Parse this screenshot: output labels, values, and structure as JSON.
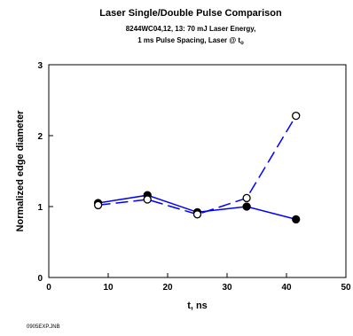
{
  "chart_data": {
    "type": "line",
    "title": "Laser Single/Double Pulse Comparison",
    "subtitle_line1": "8244WC04,12, 13: 70 mJ Laser Energy,",
    "subtitle_line2": "1 ms Pulse Spacing, Laser @ t",
    "subtitle_subscript": "o",
    "xlabel": "t, ns",
    "ylabel": "Normalized edge diameter",
    "xlim": [
      0,
      50
    ],
    "ylim": [
      0,
      3
    ],
    "xticks": [
      0,
      10,
      20,
      30,
      40,
      50
    ],
    "yticks": [
      0,
      1,
      2,
      3
    ],
    "grid": false,
    "series": [
      {
        "marker": "filled-circle",
        "line": "solid",
        "color": "#0000ff",
        "x": [
          8.3,
          16.6,
          25,
          33.3,
          41.6
        ],
        "y": [
          1.05,
          1.16,
          0.92,
          1.0,
          0.82
        ]
      },
      {
        "marker": "open-circle",
        "line": "dashed",
        "color": "#0000ff",
        "x": [
          8.3,
          16.6,
          25,
          33.3,
          41.6
        ],
        "y": [
          1.02,
          1.1,
          0.89,
          1.12,
          2.28
        ]
      }
    ]
  },
  "footnote": "0905EXP.JNB"
}
